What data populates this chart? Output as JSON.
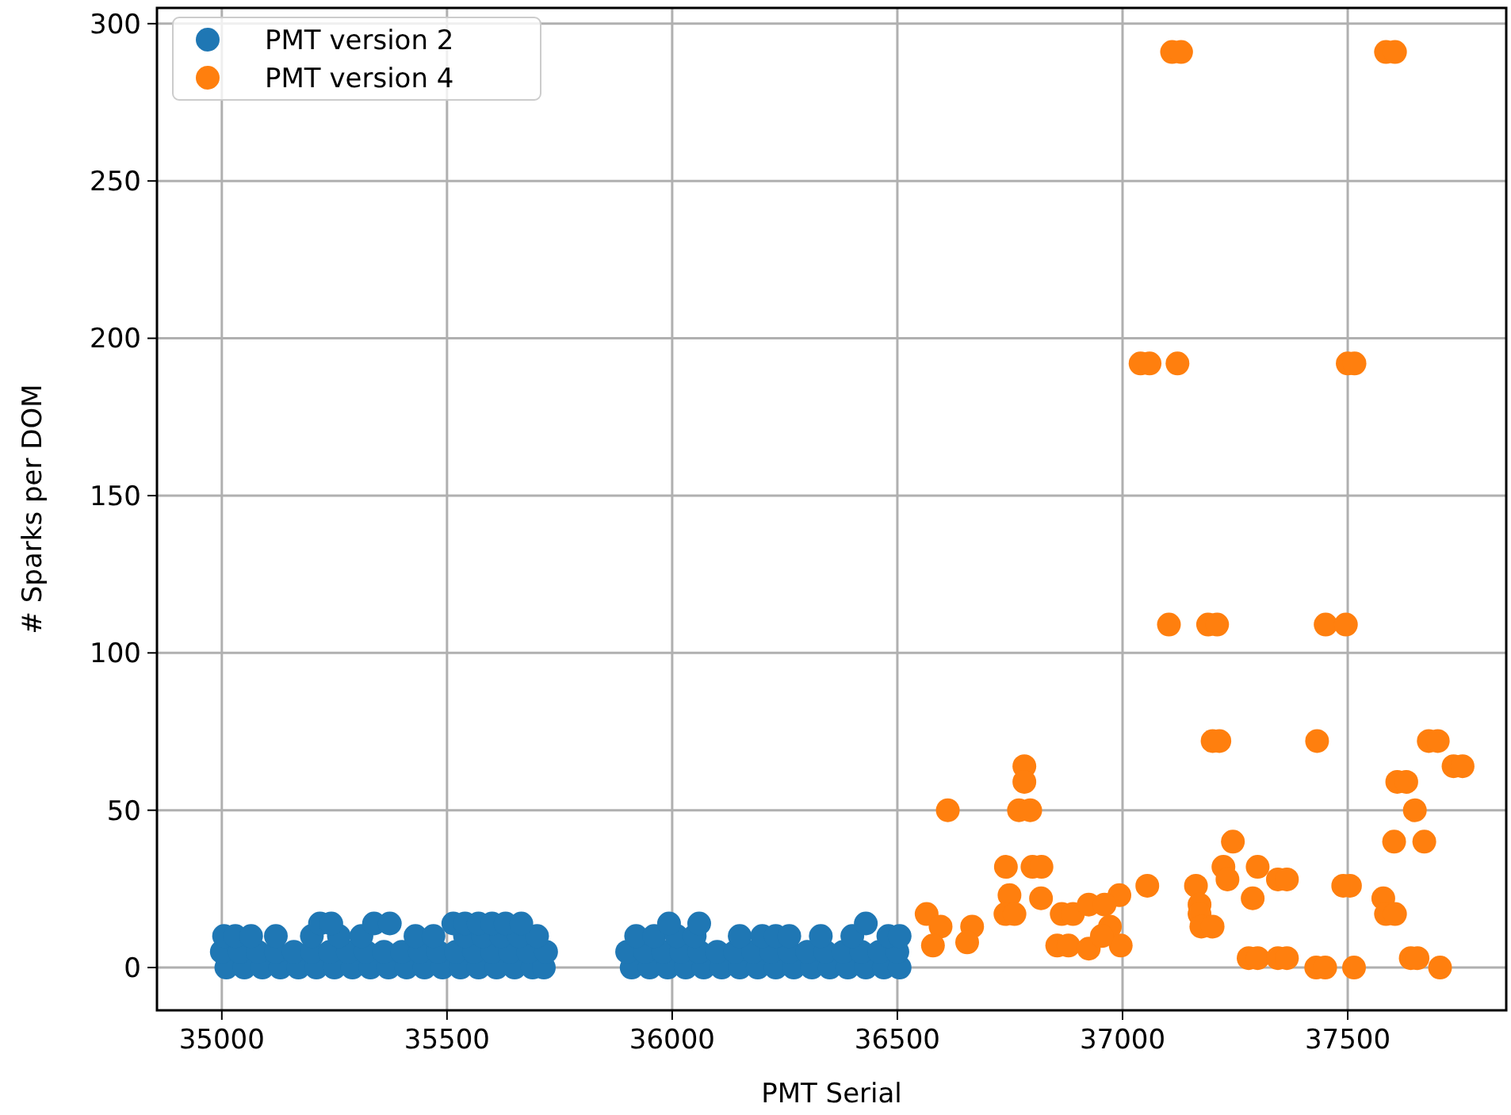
{
  "chart_data": {
    "type": "scatter",
    "xlabel": "PMT Serial",
    "ylabel": "# Sparks per DOM",
    "xlim": [
      34856,
      37852
    ],
    "ylim": [
      -13.6,
      305
    ],
    "xticks": [
      35000,
      35500,
      36000,
      36500,
      37000,
      37500
    ],
    "yticks": [
      0,
      50,
      100,
      150,
      200,
      250,
      300
    ],
    "grid": true,
    "legend": "top left",
    "marker": "circle",
    "series": [
      {
        "name": "PMT version 2",
        "color": "#1f77b4",
        "x": [
          35010,
          35050,
          35090,
          35130,
          35170,
          35210,
          35250,
          35290,
          35330,
          35370,
          35410,
          35450,
          35490,
          35530,
          35570,
          35610,
          35650,
          35690,
          35715,
          35000,
          35040,
          35080,
          35120,
          35160,
          35200,
          35240,
          35280,
          35320,
          35360,
          35400,
          35440,
          35480,
          35520,
          35560,
          35600,
          35640,
          35680,
          35720,
          35005,
          35030,
          35065,
          35120,
          35200,
          35260,
          35310,
          35430,
          35470,
          35540,
          35580,
          35620,
          35660,
          35700,
          35218,
          35243,
          35338,
          35373,
          35514,
          35540,
          35570,
          35600,
          35630,
          35665,
          35910,
          35950,
          35990,
          36030,
          36070,
          36110,
          36150,
          36190,
          36230,
          36270,
          36310,
          36350,
          36390,
          36430,
          36470,
          36505,
          35900,
          35940,
          35980,
          36020,
          36060,
          36100,
          36140,
          36180,
          36220,
          36260,
          36300,
          36340,
          36380,
          36420,
          36460,
          36500,
          35920,
          35960,
          36010,
          36050,
          36150,
          36200,
          36230,
          36260,
          36330,
          36400,
          36480,
          36505,
          35993,
          36060,
          36430
        ],
        "values": [
          0,
          0,
          0,
          0,
          0,
          0,
          0,
          0,
          0,
          0,
          0,
          0,
          0,
          0,
          0,
          0,
          0,
          0,
          0,
          5,
          5,
          5,
          5,
          5,
          5,
          5,
          5,
          5,
          5,
          5,
          5,
          5,
          5,
          5,
          5,
          5,
          5,
          5,
          10,
          10,
          10,
          10,
          10,
          10,
          10,
          10,
          10,
          10,
          10,
          10,
          10,
          10,
          14,
          14,
          14,
          14,
          14,
          14,
          14,
          14,
          14,
          14,
          0,
          0,
          0,
          0,
          0,
          0,
          0,
          0,
          0,
          0,
          0,
          0,
          0,
          0,
          0,
          0,
          5,
          5,
          5,
          5,
          5,
          5,
          5,
          5,
          5,
          5,
          5,
          5,
          5,
          5,
          5,
          5,
          10,
          10,
          10,
          10,
          10,
          10,
          10,
          10,
          10,
          10,
          10,
          10,
          14,
          14,
          14
        ]
      },
      {
        "name": "PMT version 4",
        "color": "#ff7f0e",
        "x": [
          37110,
          37130,
          37585,
          37605,
          37040,
          37060,
          37122,
          37500,
          37515,
          37103,
          37190,
          37210,
          37451,
          37496,
          37200,
          37215,
          37432,
          37680,
          37700,
          37735,
          37755,
          36782,
          36782,
          37610,
          37630,
          36770,
          36795,
          36612,
          37649,
          37603,
          37670,
          37245,
          36741,
          36800,
          36820,
          37224,
          37300,
          37345,
          37365,
          37233,
          37490,
          37505,
          37055,
          37163,
          37289,
          37579,
          36993,
          36749,
          36819,
          36740,
          36760,
          36565,
          37171,
          37171,
          37585,
          37605,
          36865,
          36890,
          36925,
          36960,
          36972,
          36596,
          36666,
          37175,
          37200,
          36579,
          36655,
          36855,
          36880,
          36925,
          36996,
          36954,
          37280,
          37300,
          37345,
          37365,
          37430,
          37450,
          37514,
          37640,
          37655,
          37705
        ],
        "values": [
          291,
          291,
          291,
          291,
          192,
          192,
          192,
          192,
          192,
          109,
          109,
          109,
          109,
          109,
          72,
          72,
          72,
          72,
          72,
          64,
          64,
          64,
          59,
          59,
          59,
          50,
          50,
          50,
          50,
          40,
          40,
          40,
          32,
          32,
          32,
          32,
          32,
          28,
          28,
          28,
          26,
          26,
          26,
          26,
          22,
          22,
          23,
          23,
          22,
          17,
          17,
          17,
          20,
          17,
          17,
          17,
          17,
          17,
          20,
          20,
          13,
          13,
          13,
          13,
          13,
          7,
          8,
          7,
          7,
          6,
          7,
          10,
          3,
          3,
          3,
          3,
          0,
          0,
          0,
          3,
          3,
          0
        ]
      }
    ]
  }
}
